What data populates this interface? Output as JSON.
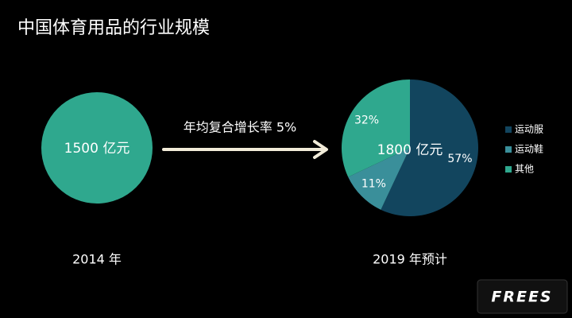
{
  "title": "中国体育用品的行业规模",
  "baseline": {
    "label": "1500 亿元",
    "caption": "2014 年",
    "color": "#2fa88e"
  },
  "growth_label": "年均复合增长率 5%",
  "chart_data": {
    "type": "pie",
    "center_label": "1800 亿元",
    "caption": "2019 年预计",
    "categories": [
      "运动服",
      "运动鞋",
      "其他"
    ],
    "values": [
      57,
      11,
      32
    ],
    "value_labels": [
      "57%",
      "11%",
      "32%"
    ],
    "colors": [
      "#12455e",
      "#3a8f9a",
      "#2fa88e"
    ]
  },
  "logo": "FREES"
}
